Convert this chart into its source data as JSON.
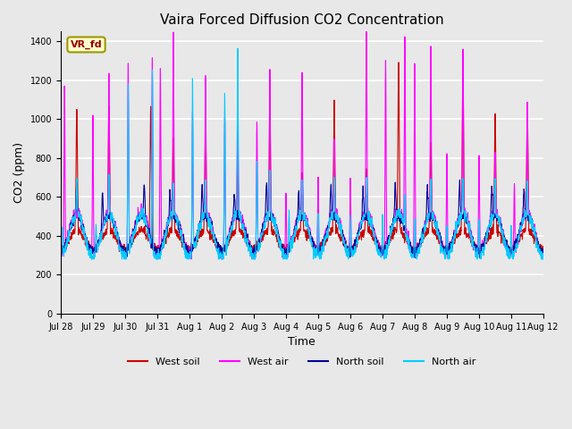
{
  "title": "Vaira Forced Diffusion CO2 Concentration",
  "xlabel": "Time",
  "ylabel": "CO2 (ppm)",
  "ylim": [
    0,
    1450
  ],
  "yticks": [
    0,
    200,
    400,
    600,
    800,
    1000,
    1200,
    1400
  ],
  "label_tag": "VR_fd",
  "label_tag_facecolor": "#ffffcc",
  "label_tag_edgecolor": "#999900",
  "label_tag_textcolor": "#990000",
  "colors": {
    "west_soil": "#cc0000",
    "west_air": "#ff00ff",
    "north_soil": "#000099",
    "north_air": "#00ccff"
  },
  "legend_labels": [
    "West soil",
    "West air",
    "North soil",
    "North air"
  ],
  "background_color": "#e8e8e8",
  "axes_facecolor": "#e8e8e8",
  "grid_color": "#ffffff",
  "xtick_labels": [
    "Jul 28",
    "Jul 29",
    "Jul 30",
    "Jul 31",
    "Aug 1",
    "Aug 2",
    "Aug 3",
    "Aug 4",
    "Aug 5",
    "Aug 6",
    "Aug 7",
    "Aug 8",
    "Aug 9",
    "Aug 10",
    "Aug 11",
    "Aug 12"
  ],
  "n_days": 15,
  "seed": 42
}
